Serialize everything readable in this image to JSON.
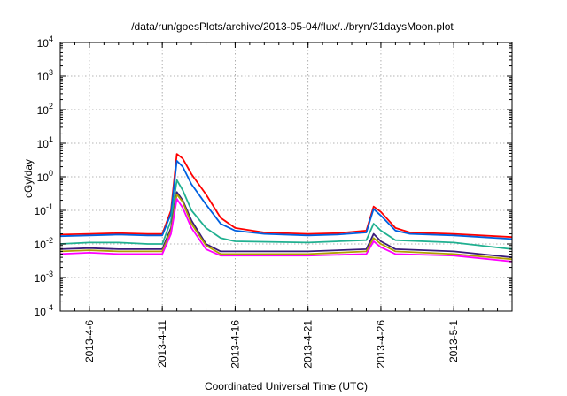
{
  "chart_data": {
    "type": "line",
    "title": "/data/run/goesPlots/archive/2013-05-04/flux/../bryn/31daysMoon.plot",
    "xlabel": "Coordinated Universal Time (UTC)",
    "ylabel": "cGy/day",
    "yscale": "log",
    "ylim": [
      0.0001,
      10000
    ],
    "xlim": [
      "2013-04-04",
      "2013-05-05"
    ],
    "grid": true,
    "legend": "none",
    "x_ticks": [
      {
        "date": "2013-04-06",
        "label": "2013-4-6"
      },
      {
        "date": "2013-04-11",
        "label": "2013-4-11"
      },
      {
        "date": "2013-04-16",
        "label": "2013-4-16"
      },
      {
        "date": "2013-04-21",
        "label": "2013-4-21"
      },
      {
        "date": "2013-04-26",
        "label": "2013-4-26"
      },
      {
        "date": "2013-05-01",
        "label": "2013-5-1"
      }
    ],
    "y_ticks": [
      {
        "value": 0.0001,
        "base": "10",
        "exp": "-4"
      },
      {
        "value": 0.001,
        "base": "10",
        "exp": "-3"
      },
      {
        "value": 0.01,
        "base": "10",
        "exp": "-2"
      },
      {
        "value": 0.1,
        "base": "10",
        "exp": "-1"
      },
      {
        "value": 1,
        "base": "10",
        "exp": "0"
      },
      {
        "value": 10,
        "base": "10",
        "exp": "1"
      },
      {
        "value": 100,
        "base": "10",
        "exp": "2"
      },
      {
        "value": 1000,
        "base": "10",
        "exp": "3"
      },
      {
        "value": 10000,
        "base": "10",
        "exp": "4"
      }
    ],
    "series": [
      {
        "color": "#ff0000",
        "points": [
          [
            "2013-04-04",
            0.019
          ],
          [
            "2013-04-06",
            0.02
          ],
          [
            "2013-04-08",
            0.021
          ],
          [
            "2013-04-10",
            0.02
          ],
          [
            "2013-04-11",
            0.02
          ],
          [
            "2013-04-11.6",
            0.1
          ],
          [
            "2013-04-12",
            4.8
          ],
          [
            "2013-04-12.4",
            3.5
          ],
          [
            "2013-04-13",
            1.2
          ],
          [
            "2013-04-14",
            0.3
          ],
          [
            "2013-04-15",
            0.06
          ],
          [
            "2013-04-16",
            0.03
          ],
          [
            "2013-04-18",
            0.022
          ],
          [
            "2013-04-21",
            0.02
          ],
          [
            "2013-04-23",
            0.021
          ],
          [
            "2013-04-25",
            0.025
          ],
          [
            "2013-04-25.5",
            0.13
          ],
          [
            "2013-04-26",
            0.09
          ],
          [
            "2013-04-27",
            0.03
          ],
          [
            "2013-04-28",
            0.022
          ],
          [
            "2013-05-01",
            0.02
          ],
          [
            "2013-05-05",
            0.016
          ]
        ]
      },
      {
        "color": "#0060e0",
        "points": [
          [
            "2013-04-04",
            0.017
          ],
          [
            "2013-04-06",
            0.018
          ],
          [
            "2013-04-08",
            0.019
          ],
          [
            "2013-04-10",
            0.018
          ],
          [
            "2013-04-11",
            0.018
          ],
          [
            "2013-04-11.6",
            0.08
          ],
          [
            "2013-04-12",
            3.0
          ],
          [
            "2013-04-12.4",
            2.0
          ],
          [
            "2013-04-13",
            0.6
          ],
          [
            "2013-04-14",
            0.15
          ],
          [
            "2013-04-15",
            0.04
          ],
          [
            "2013-04-16",
            0.025
          ],
          [
            "2013-04-18",
            0.02
          ],
          [
            "2013-04-21",
            0.018
          ],
          [
            "2013-04-23",
            0.019
          ],
          [
            "2013-04-25",
            0.022
          ],
          [
            "2013-04-25.5",
            0.11
          ],
          [
            "2013-04-26",
            0.07
          ],
          [
            "2013-04-27",
            0.025
          ],
          [
            "2013-04-28",
            0.02
          ],
          [
            "2013-05-01",
            0.018
          ],
          [
            "2013-05-05",
            0.014
          ]
        ]
      },
      {
        "color": "#20b090",
        "points": [
          [
            "2013-04-04",
            0.01
          ],
          [
            "2013-04-06",
            0.011
          ],
          [
            "2013-04-08",
            0.011
          ],
          [
            "2013-04-10",
            0.01
          ],
          [
            "2013-04-11",
            0.01
          ],
          [
            "2013-04-11.6",
            0.05
          ],
          [
            "2013-04-12",
            0.8
          ],
          [
            "2013-04-12.4",
            0.4
          ],
          [
            "2013-04-13",
            0.1
          ],
          [
            "2013-04-14",
            0.03
          ],
          [
            "2013-04-15",
            0.015
          ],
          [
            "2013-04-16",
            0.012
          ],
          [
            "2013-04-21",
            0.011
          ],
          [
            "2013-04-25",
            0.013
          ],
          [
            "2013-04-25.5",
            0.04
          ],
          [
            "2013-04-26",
            0.025
          ],
          [
            "2013-04-27",
            0.013
          ],
          [
            "2013-05-01",
            0.011
          ],
          [
            "2013-05-05",
            0.007
          ]
        ]
      },
      {
        "color": "#3a1a7a",
        "points": [
          [
            "2013-04-04",
            0.007
          ],
          [
            "2013-04-06",
            0.0075
          ],
          [
            "2013-04-08",
            0.007
          ],
          [
            "2013-04-10",
            0.007
          ],
          [
            "2013-04-11",
            0.007
          ],
          [
            "2013-04-11.6",
            0.03
          ],
          [
            "2013-04-12",
            0.35
          ],
          [
            "2013-04-12.4",
            0.2
          ],
          [
            "2013-04-13",
            0.05
          ],
          [
            "2013-04-14",
            0.01
          ],
          [
            "2013-04-15",
            0.006
          ],
          [
            "2013-04-16",
            0.006
          ],
          [
            "2013-04-21",
            0.006
          ],
          [
            "2013-04-25",
            0.007
          ],
          [
            "2013-04-25.5",
            0.02
          ],
          [
            "2013-04-26",
            0.012
          ],
          [
            "2013-04-27",
            0.007
          ],
          [
            "2013-05-01",
            0.006
          ],
          [
            "2013-05-05",
            0.004
          ]
        ]
      },
      {
        "color": "#b0a000",
        "points": [
          [
            "2013-04-04",
            0.006
          ],
          [
            "2013-04-06",
            0.0065
          ],
          [
            "2013-04-08",
            0.006
          ],
          [
            "2013-04-10",
            0.006
          ],
          [
            "2013-04-11",
            0.006
          ],
          [
            "2013-04-11.6",
            0.025
          ],
          [
            "2013-04-12",
            0.3
          ],
          [
            "2013-04-12.4",
            0.18
          ],
          [
            "2013-04-13",
            0.04
          ],
          [
            "2013-04-14",
            0.009
          ],
          [
            "2013-04-15",
            0.005
          ],
          [
            "2013-04-16",
            0.005
          ],
          [
            "2013-04-21",
            0.005
          ],
          [
            "2013-04-25",
            0.006
          ],
          [
            "2013-04-25.5",
            0.015
          ],
          [
            "2013-04-26",
            0.01
          ],
          [
            "2013-04-27",
            0.006
          ],
          [
            "2013-05-01",
            0.005
          ],
          [
            "2013-05-05",
            0.0035
          ]
        ]
      },
      {
        "color": "#ff00ff",
        "points": [
          [
            "2013-04-04",
            0.005
          ],
          [
            "2013-04-06",
            0.0055
          ],
          [
            "2013-04-08",
            0.005
          ],
          [
            "2013-04-10",
            0.005
          ],
          [
            "2013-04-11",
            0.005
          ],
          [
            "2013-04-11.6",
            0.02
          ],
          [
            "2013-04-12",
            0.22
          ],
          [
            "2013-04-12.4",
            0.12
          ],
          [
            "2013-04-13",
            0.03
          ],
          [
            "2013-04-14",
            0.007
          ],
          [
            "2013-04-15",
            0.0045
          ],
          [
            "2013-04-16",
            0.0045
          ],
          [
            "2013-04-21",
            0.0045
          ],
          [
            "2013-04-25",
            0.005
          ],
          [
            "2013-04-25.5",
            0.012
          ],
          [
            "2013-04-26",
            0.008
          ],
          [
            "2013-04-27",
            0.005
          ],
          [
            "2013-05-01",
            0.0045
          ],
          [
            "2013-05-05",
            0.003
          ]
        ]
      }
    ]
  }
}
